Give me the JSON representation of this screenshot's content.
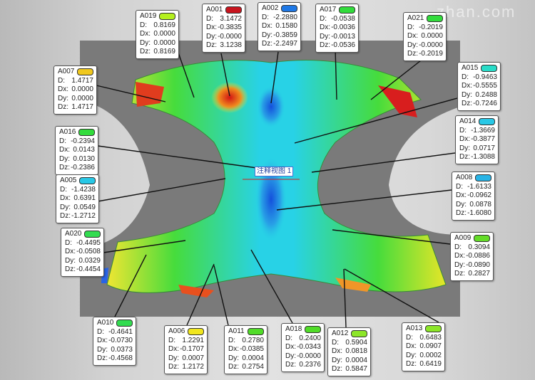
{
  "watermark": "zhan.com",
  "annotation_label": "注释视图 1",
  "field_labels": {
    "d": "D:",
    "dx": "Dx:",
    "dy": "Dy:",
    "dz": "Dz:"
  },
  "callouts": [
    {
      "id": "A019",
      "color": "#b4f01e",
      "D": "0.8169",
      "Dx": "0.0000",
      "Dy": "0.0000",
      "Dz": "0.8169"
    },
    {
      "id": "A001",
      "color": "#c8141e",
      "D": "3.1472",
      "Dx": "-0.3835",
      "Dy": "-0.0000",
      "Dz": "3.1238"
    },
    {
      "id": "A002",
      "color": "#1e78e6",
      "D": "-2.2880",
      "Dx": "0.1580",
      "Dy": "-0.3859",
      "Dz": "-2.2497"
    },
    {
      "id": "A017",
      "color": "#32dc3c",
      "D": "-0.0538",
      "Dx": "-0.0036",
      "Dy": "-0.0013",
      "Dz": "-0.0536"
    },
    {
      "id": "A021",
      "color": "#32dc3c",
      "D": "-0.2019",
      "Dx": "0.0000",
      "Dy": "-0.0000",
      "Dz": "-0.2019"
    },
    {
      "id": "A007",
      "color": "#f0c81e",
      "D": "1.4717",
      "Dx": "0.0000",
      "Dy": "0.0000",
      "Dz": "1.4717"
    },
    {
      "id": "A015",
      "color": "#28dcc8",
      "D": "-0.9463",
      "Dx": "-0.5555",
      "Dy": "0.2488",
      "Dz": "-0.7246"
    },
    {
      "id": "A016",
      "color": "#32dc3c",
      "D": "-0.2394",
      "Dx": "0.0143",
      "Dy": "0.0130",
      "Dz": "-0.2386"
    },
    {
      "id": "A014",
      "color": "#28c8e6",
      "D": "-1.3669",
      "Dx": "-0.3877",
      "Dy": "0.0717",
      "Dz": "-1.3088"
    },
    {
      "id": "A005",
      "color": "#28c8e6",
      "D": "-1.4238",
      "Dx": "0.6391",
      "Dy": "0.0549",
      "Dz": "-1.2712"
    },
    {
      "id": "A008",
      "color": "#28b4e6",
      "D": "-1.6133",
      "Dx": "-0.0962",
      "Dy": "0.0878",
      "Dz": "-1.6080"
    },
    {
      "id": "A020",
      "color": "#32dc50",
      "D": "-0.4495",
      "Dx": "-0.0508",
      "Dy": "0.0329",
      "Dz": "-0.4454"
    },
    {
      "id": "A009",
      "color": "#64dc28",
      "D": "0.3094",
      "Dx": "-0.0886",
      "Dy": "-0.0890",
      "Dz": "0.2827"
    },
    {
      "id": "A010",
      "color": "#32dc50",
      "D": "-0.4641",
      "Dx": "-0.0730",
      "Dy": "0.0373",
      "Dz": "-0.4568"
    },
    {
      "id": "A006",
      "color": "#f0e61e",
      "D": "1.2291",
      "Dx": "-0.1707",
      "Dy": "0.0007",
      "Dz": "1.2172"
    },
    {
      "id": "A011",
      "color": "#50dc28",
      "D": "0.2780",
      "Dx": "-0.0385",
      "Dy": "0.0004",
      "Dz": "0.2754"
    },
    {
      "id": "A018",
      "color": "#50dc28",
      "D": "0.2400",
      "Dx": "-0.0343",
      "Dy": "-0.0000",
      "Dz": "0.2376"
    },
    {
      "id": "A012",
      "color": "#8ce628",
      "D": "0.5904",
      "Dx": "0.0818",
      "Dy": "0.0004",
      "Dz": "0.5847"
    },
    {
      "id": "A013",
      "color": "#8ce628",
      "D": "0.6483",
      "Dx": "0.0907",
      "Dy": "0.0002",
      "Dz": "0.6419"
    }
  ]
}
